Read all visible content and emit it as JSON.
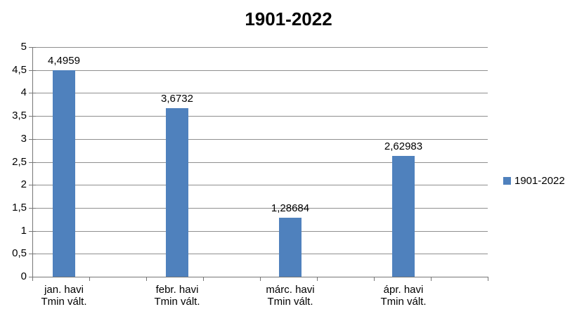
{
  "chart_data": {
    "type": "bar",
    "title": "1901-2022",
    "series_name": "1901-2022",
    "categories": [
      "jan. havi Tmin vált.",
      "febr. havi Tmin vált.",
      "márc. havi Tmin vált.",
      "ápr. havi Tmin vált."
    ],
    "category_lines": [
      [
        "jan. havi",
        "Tmin vált."
      ],
      [
        "febr. havi",
        "Tmin vált."
      ],
      [
        "márc. havi",
        "Tmin vált."
      ],
      [
        "ápr. havi",
        "Tmin vált."
      ]
    ],
    "values": [
      4.4959,
      3.6732,
      1.28684,
      2.62983
    ],
    "value_labels": [
      "4,4959",
      "3,6732",
      "1,28684",
      "2,62983"
    ],
    "ylim": [
      0,
      5
    ],
    "ytick_step": 0.5,
    "ytick_labels": [
      "0",
      "0,5",
      "1",
      "1,5",
      "2",
      "2,5",
      "3",
      "3,5",
      "4",
      "4,5",
      "5"
    ],
    "bar_color": "#4F81BD",
    "grid": true,
    "legend_position": "right",
    "xlabel": "",
    "ylabel": ""
  }
}
